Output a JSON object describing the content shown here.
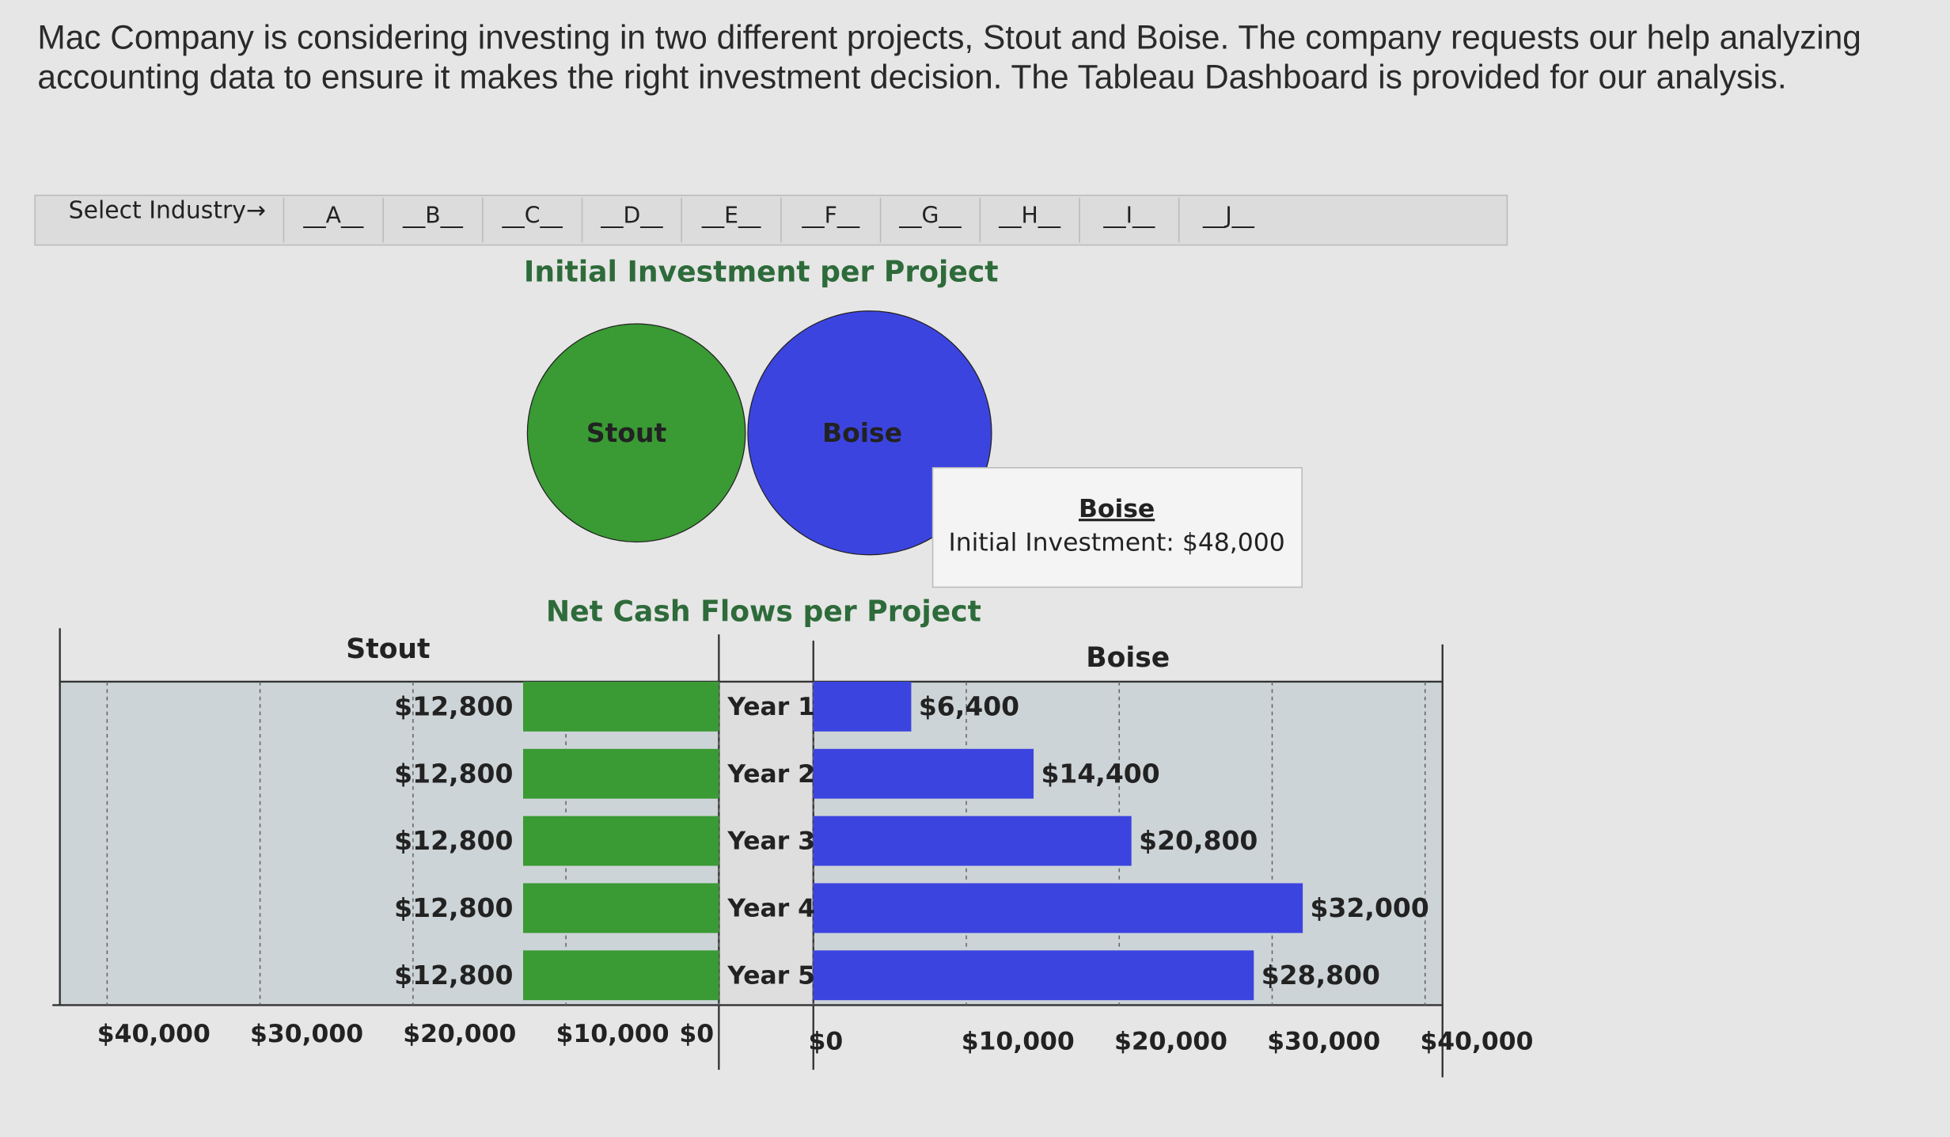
{
  "intro": "Mac Company is considering investing in two different projects, Stout and Boise. The company requests our help analyzing accounting data to ensure it makes the right investment decision. The Tableau Dashboard is provided for our analysis.",
  "filter": {
    "label": "Select Industry→",
    "options": [
      "__A__",
      "__B__",
      "__C__",
      "__D__",
      "__E__",
      "__F__",
      "__G__",
      "__H__",
      "__I__",
      "__J__"
    ]
  },
  "chart_data": [
    {
      "type": "bubble",
      "title": "Initial Investment per Project",
      "categories": [
        "Stout",
        "Boise"
      ],
      "values": [
        38400,
        48000
      ],
      "colors": [
        "#3a9a34",
        "#3c44e0"
      ],
      "tooltip": {
        "title": "Boise",
        "text": "Initial Investment: $48,000"
      }
    },
    {
      "type": "bar",
      "title": "Net Cash Flows per Project",
      "categories": [
        "Year 1",
        "Year 2",
        "Year 3",
        "Year 4",
        "Year 5"
      ],
      "series": [
        {
          "name": "Stout",
          "color": "#3a9a34",
          "values": [
            12800,
            12800,
            12800,
            12800,
            12800
          ],
          "value_labels": [
            "$12,800",
            "$12,800",
            "$12,800",
            "$12,800",
            "$12,800"
          ]
        },
        {
          "name": "Boise",
          "color": "#3c44e0",
          "values": [
            6400,
            14400,
            20800,
            32000,
            28800
          ],
          "value_labels": [
            "$6,400",
            "$14,400",
            "$20,800",
            "$32,000",
            "$28,800"
          ]
        }
      ],
      "xlim": [
        0,
        40000
      ],
      "xticks": [
        {
          "value": 0,
          "label": "$0"
        },
        {
          "value": 10000,
          "label": "$10,000"
        },
        {
          "value": 20000,
          "label": "$20,000"
        },
        {
          "value": 30000,
          "label": "$30,000"
        },
        {
          "value": 40000,
          "label": "$40,000"
        }
      ],
      "grid": true
    }
  ]
}
